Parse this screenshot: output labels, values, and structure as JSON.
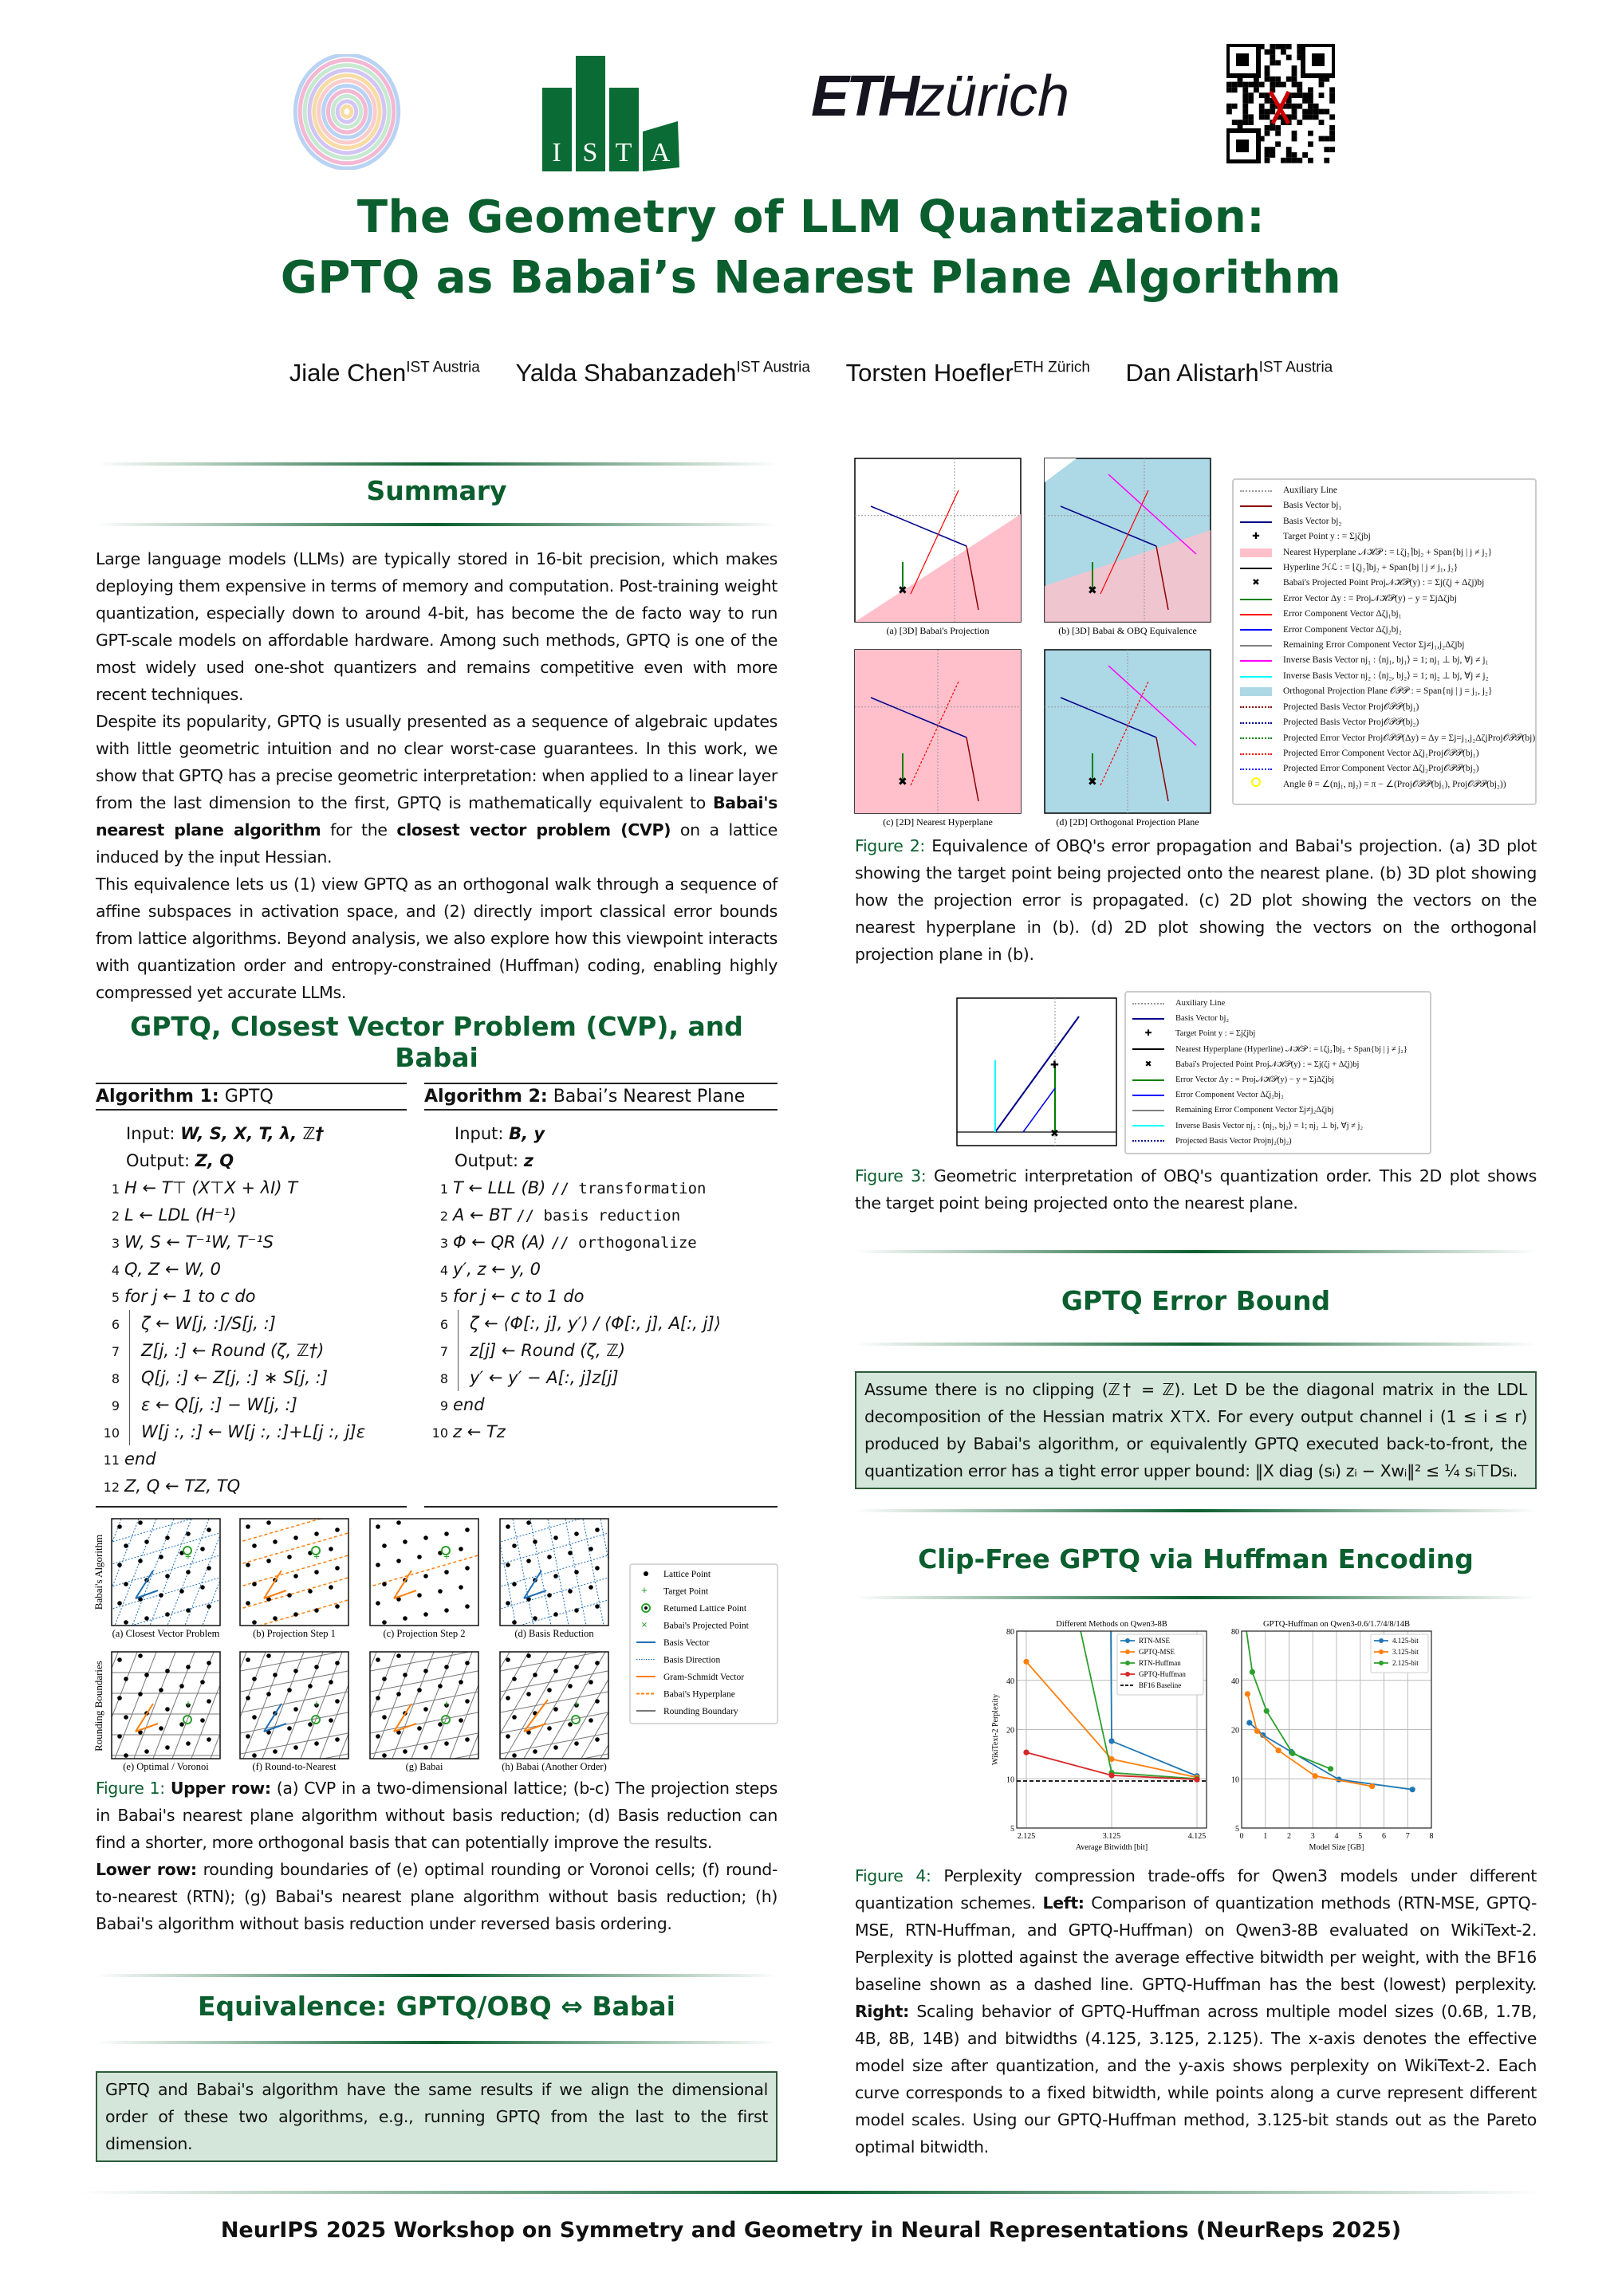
{
  "header": {
    "logos": [
      "NeurReps mandala logo",
      "ISTA",
      "ETH zürich",
      "QR code"
    ],
    "ista_letters": [
      "I",
      "S",
      "T",
      "A"
    ],
    "eth_text": "ETH",
    "zurich_text": "zürich",
    "title_line1": "The Geometry of LLM Quantization:",
    "title_line2": "GPTQ as Babai’s Nearest Plane Algorithm",
    "authors": [
      {
        "name": "Jiale Chen",
        "affil": "IST Austria"
      },
      {
        "name": "Yalda Shabanzadeh",
        "affil": "IST Austria"
      },
      {
        "name": "Torsten Hoefler",
        "affil": "ETH Zürich"
      },
      {
        "name": "Dan Alistarh",
        "affil": "IST Austria"
      }
    ]
  },
  "summary": {
    "heading": "Summary",
    "p1": "Large language models (LLMs) are typically stored in 16-bit precision, which makes deploying them expensive in terms of memory and computation. Post-training weight quantization, especially down to around 4-bit, has become the de facto way to run GPT-scale models on affordable hardware. Among such methods, GPTQ is one of the most widely used one-shot quantizers and remains competitive even with more recent techniques.",
    "p2a": "Despite its popularity, GPTQ is usually presented as a sequence of algebraic updates with little geometric intuition and no clear worst-case guarantees. In this work, we show that GPTQ has a precise geometric interpretation: when applied to a linear layer from the last dimension to the first, GPTQ is mathematically equivalent to ",
    "p2b": "Babai's nearest plane algorithm",
    "p2c": " for the ",
    "p2d": "closest vector problem (CVP)",
    "p2e": " on a lattice induced by the input Hessian.",
    "p3": "This equivalence lets us (1) view GPTQ as an orthogonal walk through a sequence of affine subspaces in activation space, and (2) directly import classical error bounds from lattice algorithms. Beyond analysis, we also explore how this viewpoint interacts with quantization order and entropy-constrained (Huffman) coding, enabling highly compressed yet accurate LLMs."
  },
  "cvp": {
    "heading": "GPTQ, Closest Vector Problem (CVP), and Babai",
    "alg1": {
      "label": "Algorithm 1:",
      "name": "GPTQ",
      "input_label": "Input:",
      "input": "W, S, X, T, λ, ℤ†",
      "output_label": "Output:",
      "output": "Z, Q",
      "lines": [
        {
          "n": "1",
          "t": "H ← T⊤ (X⊤X + λI) T",
          "indent": false
        },
        {
          "n": "2",
          "t": "L ← LDL (H⁻¹)",
          "indent": false
        },
        {
          "n": "3",
          "t": "W, S ← T⁻¹W, T⁻¹S",
          "indent": false
        },
        {
          "n": "4",
          "t": "Q, Z ← W, 0",
          "indent": false
        },
        {
          "n": "5",
          "t": "for j ← 1 to c do",
          "indent": false
        },
        {
          "n": "6",
          "t": "ζ ← W[j, :]/S[j, :]",
          "indent": true
        },
        {
          "n": "7",
          "t": "Z[j, :] ← Round (ζ, ℤ†)",
          "indent": true
        },
        {
          "n": "8",
          "t": "Q[j, :] ← Z[j, :] ∗ S[j, :]",
          "indent": true
        },
        {
          "n": "9",
          "t": "ε ← Q[j, :] − W[j, :]",
          "indent": true
        },
        {
          "n": "10",
          "t": "W[j :, :] ← W[j :, :]+L[j :, j]ε",
          "indent": true
        },
        {
          "n": "11",
          "t": "end",
          "indent": false
        },
        {
          "n": "12",
          "t": "Z, Q ← TZ, TQ",
          "indent": false
        }
      ]
    },
    "alg2": {
      "label": "Algorithm 2:",
      "name": "Babai’s Nearest Plane",
      "input_label": "Input:",
      "input": "B, y",
      "output_label": "Output:",
      "output": "z",
      "lines": [
        {
          "n": "1",
          "t": "T ← LLL (B)",
          "c": "// transformation",
          "indent": false
        },
        {
          "n": "2",
          "t": "A ← BT",
          "c": "// basis reduction",
          "indent": false
        },
        {
          "n": "3",
          "t": "Φ ← QR (A)",
          "c": "// orthogonalize",
          "indent": false
        },
        {
          "n": "4",
          "t": "y′, z ← y, 0",
          "indent": false
        },
        {
          "n": "5",
          "t": "for j ← c to 1 do",
          "indent": false
        },
        {
          "n": "6",
          "t": "ζ ← ⟨Φ[:, j], y′⟩ / ⟨Φ[:, j], A[:, j]⟩",
          "indent": true
        },
        {
          "n": "7",
          "t": "z[j] ← Round (ζ, ℤ)",
          "indent": true
        },
        {
          "n": "8",
          "t": "y′ ← y′ − A[:, j]z[j]",
          "indent": true
        },
        {
          "n": "9",
          "t": "end",
          "indent": false
        },
        {
          "n": "10",
          "t": "z ← Tz",
          "indent": false
        }
      ]
    }
  },
  "figure1": {
    "row_labels": [
      "Babai's Algorithm",
      "Rounding Boundaries"
    ],
    "panels": [
      "(a) Closest Vector Problem",
      "(b) Projection Step 1",
      "(c) Projection Step 2",
      "(d) Basis Reduction",
      "(e) Optimal / Voronoi",
      "(f) Round-to-Nearest",
      "(g) Babai",
      "(h) Babai (Another Order)"
    ],
    "legend": [
      "Lattice Point",
      "Target Point",
      "Returned Lattice Point",
      "Babai's Projected Point",
      "Basis Vector",
      "Basis Direction",
      "Gram-Schmidt Vector",
      "Babai's Hyperplane",
      "Rounding Boundary"
    ],
    "caption_label": "Figure 1:",
    "cap_upper_label": "Upper row:",
    "cap_upper": " (a) CVP in a two-dimensional lattice; (b-c) The projection steps in Babai's nearest plane algorithm without basis reduction; (d) Basis reduction can find a shorter, more orthogonal basis that can potentially improve the results.",
    "cap_lower_label": "Lower row:",
    "cap_lower": " rounding boundaries of (e) optimal rounding or Voronoi cells; (f) round-to-nearest (RTN); (g) Babai's nearest plane algorithm without basis reduction; (h) Babai's algorithm without basis reduction under reversed basis ordering.",
    "colors": {
      "basis": "#1f6fb4",
      "gram_schmidt": "#ff7f0e",
      "target": "#2ca02c",
      "boundary": "#777777"
    }
  },
  "equivalence": {
    "heading": "Equivalence: GPTQ/OBQ ⇔ Babai",
    "box": "GPTQ and Babai's algorithm have the same results if we align the dimensional order of these two algorithms, e.g., running GPTQ from the last to the first dimension."
  },
  "figure2": {
    "panels": [
      "(a) [3D] Babai's Projection",
      "(b) [3D] Babai & OBQ Equivalence",
      "(c) [2D] Nearest Hyperplane",
      "(d) [2D] Orthogonal Projection Plane"
    ],
    "legend": [
      {
        "label": "Auxiliary Line",
        "style": "dotted",
        "color": "#999999"
      },
      {
        "label": "Basis Vector bj₁",
        "style": "line",
        "color": "#8b0000"
      },
      {
        "label": "Basis Vector bj₂",
        "style": "line",
        "color": "#00008b"
      },
      {
        "label": "Target Point y : = Σjζjbj",
        "style": "plus",
        "color": "#000000"
      },
      {
        "label": "Nearest Hyperplane 𝒩ℋ𝒫 : = ⌊ζj₂⌉bj₂ + Span{bj | j ≠ j₂}",
        "style": "patch",
        "color": "#ffc0cb"
      },
      {
        "label": "Hyperline ℋℒ : = ⌊ζj₂⌉bj₂ + Span{bj | j ≠ j₁, j₂}",
        "style": "line",
        "color": "#000000"
      },
      {
        "label": "Babai's Projected Point Proj𝒩ℋ𝒫(y) : = Σj(ζj + Δζj)bj",
        "style": "x",
        "color": "#000000"
      },
      {
        "label": "Error Vector Δy : = Proj𝒩ℋ𝒫(y) − y = ΣjΔζjbj",
        "style": "line",
        "color": "#008000"
      },
      {
        "label": "Error Component Vector Δζj₁bj₁",
        "style": "line",
        "color": "#ff0000"
      },
      {
        "label": "Error Component Vector Δζj₂bj₂",
        "style": "line",
        "color": "#0000ff"
      },
      {
        "label": "Remaining Error Component Vector Σj≠j₁,j₂Δζjbj",
        "style": "line",
        "color": "#808080"
      },
      {
        "label": "Inverse Basis Vector nj₁ : ⟨nj₁, bj₁⟩ = 1; nj₁ ⊥ bj, ∀j ≠ j₁",
        "style": "line",
        "color": "#ff00ff"
      },
      {
        "label": "Inverse Basis Vector nj₂ : ⟨nj₂, bj₂⟩ = 1; nj₂ ⊥ bj, ∀j ≠ j₂",
        "style": "line",
        "color": "#00ffff"
      },
      {
        "label": "Orthogonal Projection Plane 𝒪𝒫𝒫 : = Span{nj | j = j₁, j₂}",
        "style": "patch",
        "color": "#add8e6"
      },
      {
        "label": "Projected Basis Vector Proj𝒪𝒫𝒫(bj₁)",
        "style": "dotted",
        "color": "#8b0000"
      },
      {
        "label": "Projected Basis Vector Proj𝒪𝒫𝒫(bj₂)",
        "style": "dotted",
        "color": "#00008b"
      },
      {
        "label": "Projected Error Vector Proj𝒪𝒫𝒫(Δy) = Δy = Σj=j₁,j₂ΔζjProj𝒪𝒫𝒫(bj)",
        "style": "dotted",
        "color": "#008000"
      },
      {
        "label": "Projected Error Component Vector Δζj₁Proj𝒪𝒫𝒫(bj₁)",
        "style": "dotted",
        "color": "#ff0000"
      },
      {
        "label": "Projected Error Component Vector Δζj₂Proj𝒪𝒫𝒫(bj₂)",
        "style": "dotted",
        "color": "#0000ff"
      },
      {
        "label": "Angle θ = ∠(nj₁, nj₂) = π − ∠(Proj𝒪𝒫𝒫(bj₁), Proj𝒪𝒫𝒫(bj₂))",
        "style": "circle",
        "color": "#ffff00"
      }
    ],
    "caption_label": "Figure 2:",
    "caption": " Equivalence of OBQ's error propagation and Babai's projection. (a) 3D plot showing the target point being projected onto the nearest plane. (b) 3D plot showing how the projection error is propagated. (c) 2D plot showing the vectors on the nearest hyperplane in (b). (d) 2D plot showing the vectors on the orthogonal projection plane in (b)."
  },
  "figure3": {
    "legend": [
      {
        "label": "Auxiliary Line",
        "style": "dotted",
        "color": "#999999"
      },
      {
        "label": "Basis Vector bj₂",
        "style": "line",
        "color": "#00008b"
      },
      {
        "label": "Target Point y : = Σjζjbj",
        "style": "plus",
        "color": "#000000"
      },
      {
        "label": "Nearest Hyperplane (Hyperline) 𝒩ℋ𝒫 : = ⌊ζj₂⌉bj₂ + Span{bj | j ≠ j₂}",
        "style": "line",
        "color": "#000000"
      },
      {
        "label": "Babai's Projected Point Proj𝒩ℋ𝒫(y) : = Σj(ζj + Δζj)bj",
        "style": "x",
        "color": "#000000"
      },
      {
        "label": "Error Vector Δy : = Proj𝒩ℋ𝒫(y) − y = ΣjΔζjbj",
        "style": "line",
        "color": "#008000"
      },
      {
        "label": "Error Component Vector Δζj₂bj₂",
        "style": "line",
        "color": "#0000ff"
      },
      {
        "label": "Remaining Error Component Vector Σj≠j₂Δζjbj",
        "style": "line",
        "color": "#808080"
      },
      {
        "label": "Inverse Basis Vector nj₂ : ⟨nj₂, bj₂⟩ = 1; nj₂ ⊥ bj, ∀j ≠ j₂",
        "style": "line",
        "color": "#00ffff"
      },
      {
        "label": "Projected Basis Vector Projnj₂(bj₂)",
        "style": "dotted",
        "color": "#00008b"
      }
    ],
    "caption_label": "Figure 3:",
    "caption": " Geometric interpretation of OBQ's quantization order. This 2D plot shows the target point being projected onto the nearest plane."
  },
  "error_bound": {
    "heading": "GPTQ Error Bound",
    "box": "Assume there is no clipping (ℤ† = ℤ). Let D be the diagonal matrix in the LDL decomposition of the Hessian matrix X⊤X. For every output channel i (1 ≤ i ≤ r) produced by Babai's algorithm, or equivalently GPTQ executed back-to-front, the quantization error has a tight error upper bound: ‖X diag (sᵢ) zᵢ − Xwᵢ‖² ≤ ¼ sᵢ⊤Dsᵢ."
  },
  "huffman": {
    "heading": "Clip-Free GPTQ via Huffman Encoding",
    "caption_label": "Figure 4:",
    "caption_a": " Perplexity compression trade-offs for Qwen3 models under different quantization schemes. ",
    "left_label": "Left:",
    "caption_b": " Comparison of quantization methods (RTN-MSE, GPTQ-MSE, RTN-Huffman, and GPTQ-Huffman) on Qwen3-8B evaluated on WikiText-2. Perplexity is plotted against the average effective bitwidth per weight, with the BF16 baseline shown as a dashed line. GPTQ-Huffman has the best (lowest) perplexity. ",
    "right_label": "Right:",
    "caption_c": " Scaling behavior of GPTQ-Huffman across multiple model sizes (0.6B, 1.7B, 4B, 8B, 14B) and bitwidths (4.125, 3.125, 2.125). The x-axis denotes the effective model size after quantization, and the y-axis shows perplexity on WikiText-2. Each curve corresponds to a fixed bitwidth, while points along a curve represent different model scales. Using our GPTQ-Huffman method, 3.125-bit stands out as the Pareto optimal bitwidth."
  },
  "chart_data": [
    {
      "type": "line",
      "title": "Different Methods on Qwen3-8B",
      "xlabel": "Average Bitwidth [bit]",
      "ylabel": "WikiText-2 Perplexity",
      "yscale": "log",
      "ylim": [
        5,
        80
      ],
      "yticks": [
        5,
        10,
        20,
        40,
        80
      ],
      "x": [
        2.125,
        3.125,
        4.125
      ],
      "xticks": [
        "2.125",
        "3.125",
        "4.125"
      ],
      "grid": true,
      "legend_position": "top-right",
      "series": [
        {
          "name": "RTN-MSE",
          "color": "#1f77b4",
          "values": [
            null,
            17,
            10.4
          ],
          "off_chart_above": true
        },
        {
          "name": "GPTQ-MSE",
          "color": "#ff7f0e",
          "values": [
            52,
            13.2,
            10.2
          ]
        },
        {
          "name": "RTN-Huffman",
          "color": "#2ca02c",
          "values": [
            null,
            10.9,
            10.0
          ],
          "off_chart_above": true
        },
        {
          "name": "GPTQ-Huffman",
          "color": "#d62728",
          "values": [
            14.5,
            10.5,
            9.9
          ]
        }
      ],
      "baseline": {
        "name": "BF16 Baseline",
        "value": 9.7,
        "style": "dashed",
        "color": "#000000"
      }
    },
    {
      "type": "line",
      "title": "GPTQ-Huffman on Qwen3-0.6/1.7/4/8/14B",
      "xlabel": "Model Size [GB]",
      "ylabel": "",
      "yscale": "log",
      "ylim": [
        5,
        80
      ],
      "xlim": [
        0,
        8
      ],
      "yticks": [
        5,
        10,
        20,
        40,
        80
      ],
      "xticks": [
        "0",
        "1",
        "2",
        "3",
        "4",
        "5",
        "6",
        "7",
        "8"
      ],
      "grid": true,
      "legend_position": "top-right",
      "series": [
        {
          "name": "4.125-bit",
          "color": "#1f77b4",
          "points": [
            [
              0.33,
              22
            ],
            [
              0.9,
              18.5
            ],
            [
              2.1,
              14.6
            ],
            [
              4.1,
              9.9
            ],
            [
              7.2,
              8.6
            ]
          ]
        },
        {
          "name": "3.125-bit",
          "color": "#ff7f0e",
          "points": [
            [
              0.25,
              33
            ],
            [
              0.65,
              19.6
            ],
            [
              1.55,
              14.9
            ],
            [
              3.1,
              10.4
            ],
            [
              5.5,
              9.0
            ]
          ]
        },
        {
          "name": "2.125-bit",
          "color": "#2ca02c",
          "points": [
            [
              0.45,
              45
            ],
            [
              1.05,
              26
            ],
            [
              2.15,
              14.3
            ],
            [
              3.75,
              11.5
            ]
          ],
          "off_chart_above": true
        }
      ]
    }
  ],
  "footer": {
    "text": "NeurIPS 2025 Workshop on Symmetry and Geometry in Neural Representations (NeurReps 2025)"
  },
  "colors": {
    "accent_green": "#0b5e2e",
    "box_fill": "#d4e6da"
  }
}
